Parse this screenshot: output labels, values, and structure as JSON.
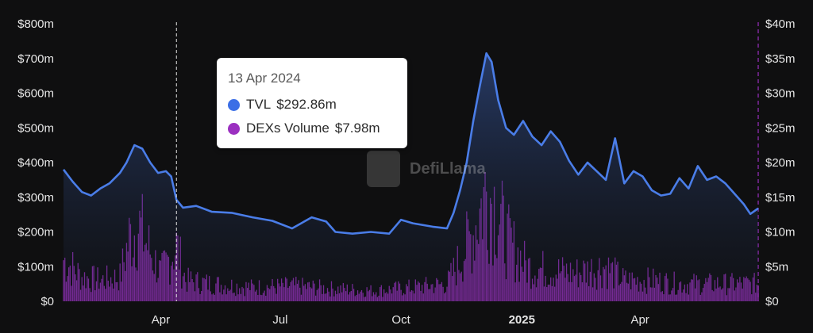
{
  "chart_data": {
    "type": "area",
    "x_axis": {
      "range": [
        "2024-01-18",
        "2025-06-30"
      ],
      "ticks": [
        {
          "label": "Apr",
          "date": "2024-04-01",
          "bold": false
        },
        {
          "label": "Jul",
          "date": "2024-07-01",
          "bold": false
        },
        {
          "label": "Oct",
          "date": "2024-10-01",
          "bold": false
        },
        {
          "label": "2025",
          "date": "2025-01-01",
          "bold": true
        },
        {
          "label": "Apr",
          "date": "2025-04-01",
          "bold": false
        }
      ]
    },
    "y_axis_left": {
      "series": "TVL",
      "range": [
        0,
        800
      ],
      "ticks": [
        "$0",
        "$100m",
        "$200m",
        "$300m",
        "$400m",
        "$500m",
        "$600m",
        "$700m",
        "$800m"
      ]
    },
    "y_axis_right": {
      "series": "DEXs Volume",
      "range": [
        0,
        40
      ],
      "ticks": [
        "$0",
        "$5m",
        "$10m",
        "$15m",
        "$20m",
        "$25m",
        "$30m",
        "$35m",
        "$40m"
      ]
    },
    "grid": false,
    "series": [
      {
        "name": "TVL",
        "axis": "left",
        "color": "#4a7de8",
        "unit": "$m",
        "points": [
          [
            "2024-01-18",
            380
          ],
          [
            "2024-01-25",
            345
          ],
          [
            "2024-02-01",
            315
          ],
          [
            "2024-02-08",
            305
          ],
          [
            "2024-02-15",
            325
          ],
          [
            "2024-02-22",
            340
          ],
          [
            "2024-03-01",
            370
          ],
          [
            "2024-03-06",
            400
          ],
          [
            "2024-03-12",
            450
          ],
          [
            "2024-03-18",
            440
          ],
          [
            "2024-03-24",
            400
          ],
          [
            "2024-03-30",
            370
          ],
          [
            "2024-04-05",
            375
          ],
          [
            "2024-04-09",
            360
          ],
          [
            "2024-04-13",
            292.86
          ],
          [
            "2024-04-18",
            270
          ],
          [
            "2024-04-28",
            275
          ],
          [
            "2024-05-10",
            258
          ],
          [
            "2024-05-25",
            255
          ],
          [
            "2024-06-10",
            242
          ],
          [
            "2024-06-25",
            232
          ],
          [
            "2024-07-10",
            210
          ],
          [
            "2024-07-25",
            242
          ],
          [
            "2024-08-05",
            230
          ],
          [
            "2024-08-12",
            200
          ],
          [
            "2024-08-25",
            195
          ],
          [
            "2024-09-08",
            200
          ],
          [
            "2024-09-22",
            195
          ],
          [
            "2024-10-01",
            235
          ],
          [
            "2024-10-10",
            225
          ],
          [
            "2024-10-25",
            215
          ],
          [
            "2024-11-05",
            210
          ],
          [
            "2024-11-10",
            255
          ],
          [
            "2024-11-15",
            320
          ],
          [
            "2024-11-20",
            400
          ],
          [
            "2024-11-25",
            520
          ],
          [
            "2024-11-30",
            620
          ],
          [
            "2024-12-05",
            715
          ],
          [
            "2024-12-09",
            690
          ],
          [
            "2024-12-14",
            580
          ],
          [
            "2024-12-20",
            500
          ],
          [
            "2024-12-26",
            480
          ],
          [
            "2025-01-02",
            520
          ],
          [
            "2025-01-09",
            475
          ],
          [
            "2025-01-16",
            450
          ],
          [
            "2025-01-23",
            490
          ],
          [
            "2025-01-30",
            460
          ],
          [
            "2025-02-06",
            405
          ],
          [
            "2025-02-13",
            365
          ],
          [
            "2025-02-20",
            400
          ],
          [
            "2025-02-27",
            375
          ],
          [
            "2025-03-06",
            350
          ],
          [
            "2025-03-13",
            470
          ],
          [
            "2025-03-20",
            340
          ],
          [
            "2025-03-27",
            375
          ],
          [
            "2025-04-03",
            360
          ],
          [
            "2025-04-10",
            320
          ],
          [
            "2025-04-17",
            305
          ],
          [
            "2025-04-24",
            310
          ],
          [
            "2025-05-01",
            355
          ],
          [
            "2025-05-08",
            325
          ],
          [
            "2025-05-15",
            390
          ],
          [
            "2025-05-22",
            350
          ],
          [
            "2025-05-29",
            360
          ],
          [
            "2025-06-05",
            340
          ],
          [
            "2025-06-12",
            310
          ],
          [
            "2025-06-19",
            280
          ],
          [
            "2025-06-24",
            252
          ],
          [
            "2025-06-30",
            268
          ]
        ]
      },
      {
        "name": "DEXs Volume",
        "axis": "right",
        "color": "#9b30c0",
        "unit": "$m",
        "points": [
          [
            "2024-01-18",
            6
          ],
          [
            "2024-02-01",
            3.5
          ],
          [
            "2024-02-15",
            3
          ],
          [
            "2024-03-01",
            3.5
          ],
          [
            "2024-03-08",
            9
          ],
          [
            "2024-03-15",
            11
          ],
          [
            "2024-03-22",
            8
          ],
          [
            "2024-04-01",
            4
          ],
          [
            "2024-04-13",
            7.98
          ],
          [
            "2024-04-20",
            3
          ],
          [
            "2024-05-10",
            2.5
          ],
          [
            "2024-06-10",
            2
          ],
          [
            "2024-07-10",
            2.2
          ],
          [
            "2024-08-10",
            1.8
          ],
          [
            "2024-09-10",
            1.5
          ],
          [
            "2024-10-10",
            2
          ],
          [
            "2024-11-05",
            2.5
          ],
          [
            "2024-11-15",
            6
          ],
          [
            "2024-11-25",
            10
          ],
          [
            "2024-12-05",
            16
          ],
          [
            "2024-12-12",
            14
          ],
          [
            "2024-12-20",
            9
          ],
          [
            "2025-01-05",
            5
          ],
          [
            "2025-01-20",
            4.5
          ],
          [
            "2025-02-10",
            4
          ],
          [
            "2025-03-05",
            5
          ],
          [
            "2025-03-20",
            3
          ],
          [
            "2025-04-10",
            3
          ],
          [
            "2025-05-01",
            2.5
          ],
          [
            "2025-05-20",
            2.5
          ],
          [
            "2025-06-10",
            2.5
          ],
          [
            "2025-06-30",
            2.5
          ]
        ]
      }
    ],
    "hover": {
      "date": "2024-04-13"
    },
    "legend": "tooltip"
  },
  "tooltip": {
    "date": "13 Apr 2024",
    "items": [
      {
        "label": "TVL",
        "value": "$292.86m",
        "color": "#3b6ee6"
      },
      {
        "label": "DEXs Volume",
        "value": "$7.98m",
        "color": "#9b30c0"
      }
    ]
  },
  "watermark": {
    "text": "DefiLlama"
  }
}
